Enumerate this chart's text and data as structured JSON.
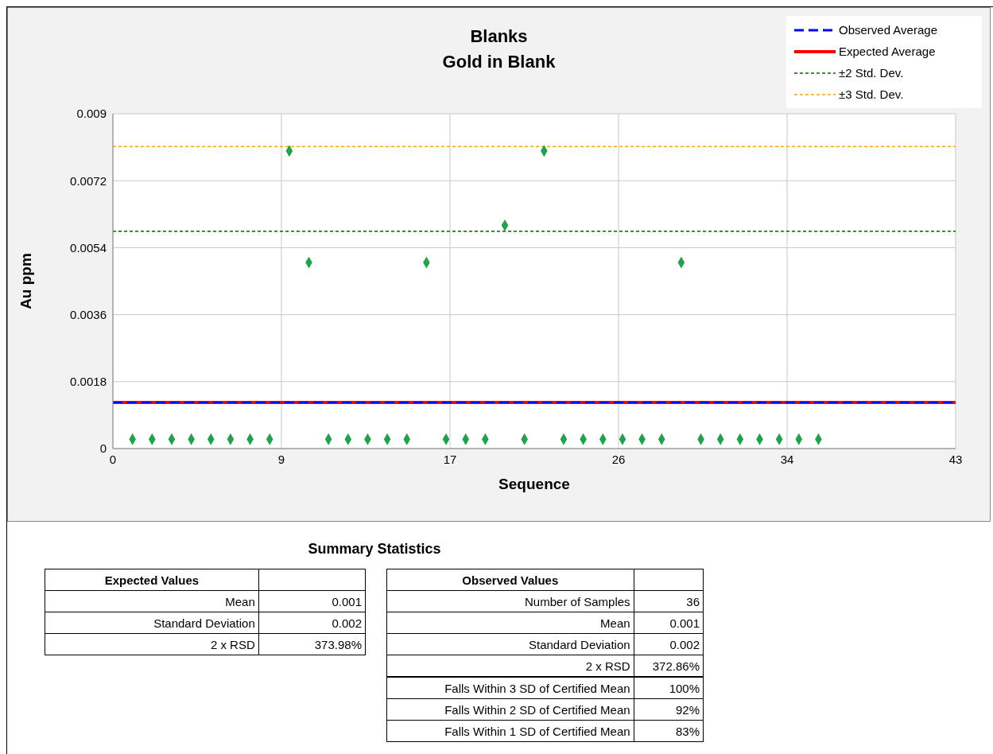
{
  "chart_data": {
    "type": "scatter",
    "title": "Blanks",
    "subtitle": "Gold in Blank",
    "xlabel": "Sequence",
    "ylabel": "Au ppm",
    "x": [
      1,
      2,
      3,
      4,
      5,
      6,
      7,
      8,
      9,
      10,
      11,
      12,
      13,
      14,
      15,
      16,
      17,
      18,
      19,
      20,
      21,
      22,
      23,
      24,
      25,
      26,
      27,
      28,
      29,
      30,
      31,
      32,
      33,
      34,
      35,
      36
    ],
    "series": [
      {
        "color": "#1fa34a",
        "values": [
          0.00025,
          0.00025,
          0.00025,
          0.00025,
          0.00025,
          0.00025,
          0.00025,
          0.00025,
          0.008,
          0.005,
          0.00025,
          0.00025,
          0.00025,
          0.00025,
          0.00025,
          0.005,
          0.00025,
          0.00025,
          0.00025,
          0.006,
          0.00025,
          0.008,
          0.00025,
          0.00025,
          0.00025,
          0.00025,
          0.00025,
          0.00025,
          0.005,
          0.00025,
          0.00025,
          0.00025,
          0.00025,
          0.00025,
          0.00025,
          0.00025
        ]
      }
    ],
    "marker": "diamond",
    "xlim": [
      0,
      43
    ],
    "xticks": [
      0,
      {
        "value": 8.6,
        "label": "9"
      },
      {
        "value": 17.2,
        "label": "17"
      },
      {
        "value": 25.8,
        "label": "26"
      },
      {
        "value": 34.4,
        "label": "34"
      },
      43
    ],
    "ylim": [
      0,
      0.009
    ],
    "yticks": [
      0,
      0.0018,
      0.0036,
      0.0054,
      0.0072,
      0.009
    ],
    "grid": true,
    "legend": "top right",
    "ref_lines": [
      {
        "axis": "y",
        "value": 0.00124,
        "label": "Observed Average",
        "color": "#0000ff",
        "line_style": "dashed"
      },
      {
        "axis": "y",
        "value": 0.00124,
        "label": "Expected Average",
        "color": "#ff0000",
        "line_style": "solid"
      },
      {
        "axis": "y",
        "value": 0.00584,
        "label": "±2 Std. Dev.",
        "color": "#006600",
        "line_style": "dotted"
      },
      {
        "axis": "y",
        "value": 0.00812,
        "label": "±3 Std. Dev.",
        "color": "#ffa500",
        "line_style": "dotted"
      }
    ],
    "annotations": [
      "Summary Statistics",
      "Expected Values",
      "Mean",
      "0.001",
      "Standard Deviation",
      "0.002",
      "2 x RSD",
      "373.98%",
      "Observed Values",
      "Number of Samples",
      "36",
      "Mean",
      "0.001",
      "Standard Deviation",
      "0.002",
      "2 x RSD",
      "372.86%",
      "Falls Within 3 SD of Certified Mean",
      "100%",
      "Falls Within 2 SD of Certified Mean",
      "92%",
      "Falls Within 1 SD of Certified Mean",
      "83%"
    ]
  }
}
